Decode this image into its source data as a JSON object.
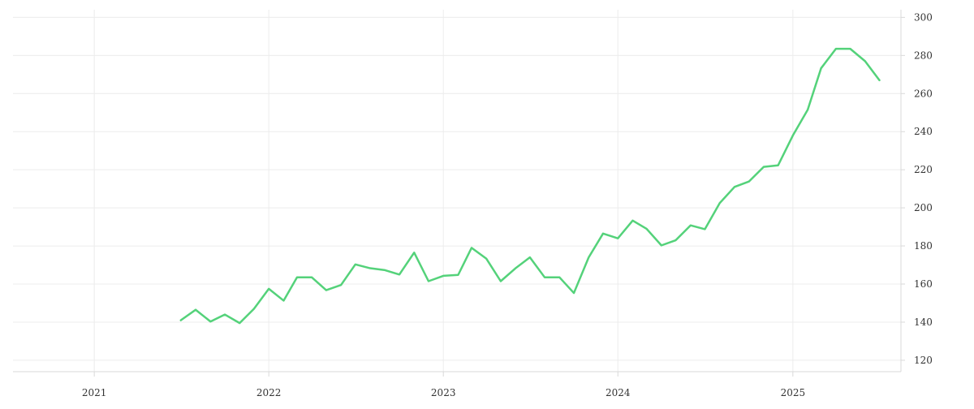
{
  "chart_data": {
    "type": "line",
    "title": "",
    "xlabel": "",
    "ylabel": "",
    "x_ticks": [
      "2021",
      "2022",
      "2023",
      "2024",
      "2025"
    ],
    "y_ticks": [
      120,
      140,
      160,
      180,
      200,
      220,
      240,
      260,
      280,
      300
    ],
    "xlim": [
      "2020-07-15",
      "2025-08-15"
    ],
    "ylim": [
      114,
      304
    ],
    "grid": true,
    "y_axis_position": "right",
    "colors": {
      "line": "#54d27a",
      "grid": "#ececec",
      "axis": "#d9d9d9",
      "text": "#333333"
    },
    "series": [
      {
        "points": [
          [
            "2021-07-01",
            141.0
          ],
          [
            "2021-08-01",
            146.5
          ],
          [
            "2021-09-01",
            140.3
          ],
          [
            "2021-10-01",
            144.0
          ],
          [
            "2021-11-01",
            139.5
          ],
          [
            "2021-12-01",
            147.0
          ],
          [
            "2022-01-01",
            157.5
          ],
          [
            "2022-02-01",
            151.3
          ],
          [
            "2022-03-01",
            163.5
          ],
          [
            "2022-04-01",
            163.5
          ],
          [
            "2022-05-01",
            156.8
          ],
          [
            "2022-06-01",
            159.5
          ],
          [
            "2022-07-01",
            170.3
          ],
          [
            "2022-08-01",
            168.3
          ],
          [
            "2022-09-01",
            167.3
          ],
          [
            "2022-10-01",
            165.0
          ],
          [
            "2022-11-01",
            176.5
          ],
          [
            "2022-12-01",
            161.5
          ],
          [
            "2023-01-01",
            164.3
          ],
          [
            "2023-02-01",
            164.8
          ],
          [
            "2023-03-01",
            179.0
          ],
          [
            "2023-04-01",
            173.3
          ],
          [
            "2023-05-01",
            161.5
          ],
          [
            "2023-06-01",
            168.3
          ],
          [
            "2023-07-01",
            174.0
          ],
          [
            "2023-08-01",
            163.5
          ],
          [
            "2023-09-01",
            163.5
          ],
          [
            "2023-10-01",
            155.3
          ],
          [
            "2023-11-01",
            174.0
          ],
          [
            "2023-12-01",
            186.5
          ],
          [
            "2024-01-01",
            184.0
          ],
          [
            "2024-02-01",
            193.3
          ],
          [
            "2024-03-01",
            189.0
          ],
          [
            "2024-04-01",
            180.3
          ],
          [
            "2024-05-01",
            183.0
          ],
          [
            "2024-06-01",
            190.8
          ],
          [
            "2024-07-01",
            188.8
          ],
          [
            "2024-08-01",
            202.5
          ],
          [
            "2024-09-01",
            211.0
          ],
          [
            "2024-10-01",
            213.8
          ],
          [
            "2024-11-01",
            221.5
          ],
          [
            "2024-12-01",
            222.3
          ],
          [
            "2025-01-01",
            238.0
          ],
          [
            "2025-02-01",
            251.5
          ],
          [
            "2025-03-01",
            273.3
          ],
          [
            "2025-04-01",
            283.5
          ],
          [
            "2025-05-01",
            283.5
          ],
          [
            "2025-06-01",
            277.0
          ],
          [
            "2025-07-01",
            267.0
          ]
        ]
      }
    ]
  }
}
